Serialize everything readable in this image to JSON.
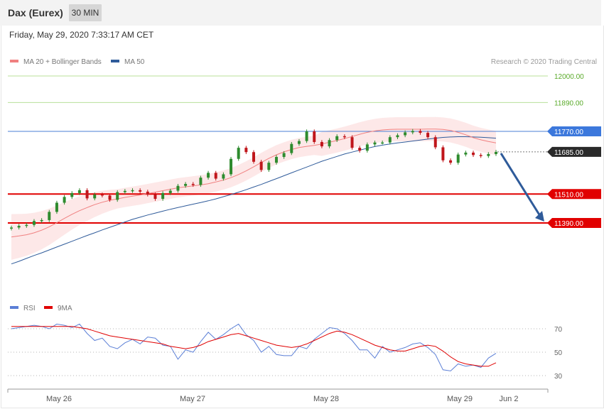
{
  "header": {
    "title": "Dax (Eurex)",
    "interval": "30 MIN",
    "datetime": "Friday, May 29, 2020 7:33:17 AM CET"
  },
  "legend": {
    "ma20": {
      "label": "MA 20 + Bollinger Bands",
      "color": "#f08080"
    },
    "ma50": {
      "label": "MA 50",
      "color": "#2f5b9a"
    },
    "credit": "Research © 2020 Trading Central"
  },
  "rsi_legend": {
    "rsi": {
      "label": "RSI",
      "color": "#5b7fd6"
    },
    "ma9": {
      "label": "9MA",
      "color": "#e00000"
    }
  },
  "x_labels": [
    "May 26",
    "May 27",
    "May 28",
    "May 29",
    "Jun 2"
  ],
  "colors": {
    "up": "#2e8b2e",
    "down": "#c0161b",
    "band": "#fde2e2",
    "target": "#5aab2a",
    "pivot": "#4a7fd6",
    "support": "#e10000",
    "current": "#2a2a2a",
    "arrow": "#2f5b9a"
  },
  "chart_data": [
    {
      "type": "line",
      "title": "Dax (Eurex)",
      "ylim": [
        11100,
        12100
      ],
      "price_levels": [
        {
          "value": "12000.00",
          "role": "target"
        },
        {
          "value": "11890.00",
          "role": "target"
        },
        {
          "value": "11770.00",
          "role": "pivot"
        },
        {
          "value": "11685.00",
          "role": "current"
        },
        {
          "value": "11510.00",
          "role": "support"
        },
        {
          "value": "11390.00",
          "role": "support"
        }
      ],
      "forecast": {
        "from": 11685,
        "to": 11390
      },
      "series": [
        {
          "name": "MA 20 + Bollinger Bands",
          "values": [
            11332,
            11336,
            11341,
            11349,
            11360,
            11374,
            11391,
            11409,
            11426,
            11441,
            11454,
            11466,
            11476,
            11484,
            11490,
            11496,
            11501,
            11506,
            11512,
            11518,
            11524,
            11530,
            11536,
            11540,
            11544,
            11548,
            11553,
            11560,
            11568,
            11578,
            11591,
            11606,
            11623,
            11641,
            11658,
            11673,
            11685,
            11695,
            11703,
            11708,
            11712,
            11718,
            11725,
            11732,
            11740,
            11749,
            11758,
            11766,
            11772,
            11776,
            11778,
            11779,
            11779,
            11779,
            11779,
            11780,
            11780,
            11778,
            11774,
            11766,
            11756,
            11744,
            11735,
            11728,
            11722
          ]
        },
        {
          "name": "MA 50",
          "values": [
            11220,
            11231,
            11243,
            11255,
            11266,
            11278,
            11290,
            11302,
            11314,
            11326,
            11338,
            11349,
            11361,
            11372,
            11383,
            11394,
            11405,
            11414,
            11423,
            11431,
            11439,
            11447,
            11454,
            11461,
            11468,
            11475,
            11482,
            11490,
            11499,
            11508,
            11518,
            11528,
            11539,
            11550,
            11562,
            11574,
            11586,
            11598,
            11610,
            11622,
            11634,
            11646,
            11656,
            11666,
            11676,
            11684,
            11692,
            11700,
            11707,
            11713,
            11718,
            11722,
            11726,
            11730,
            11734,
            11738,
            11742,
            11745,
            11747,
            11748,
            11748,
            11747,
            11746,
            11744,
            11742
          ]
        },
        {
          "name": "Price",
          "values": [
            11371,
            11378,
            11382,
            11398,
            11402,
            11436,
            11474,
            11498,
            11514,
            11526,
            11492,
            11508,
            11504,
            11486,
            11518,
            11523,
            11526,
            11520,
            11508,
            11490,
            11514,
            11524,
            11544,
            11552,
            11548,
            11578,
            11598,
            11574,
            11592,
            11656,
            11702,
            11684,
            11644,
            11610,
            11640,
            11664,
            11680,
            11718,
            11730,
            11770,
            11726,
            11708,
            11734,
            11750,
            11746,
            11702,
            11690,
            11716,
            11724,
            11724,
            11746,
            11754,
            11766,
            11772,
            11764,
            11746,
            11704,
            11650,
            11640,
            11674,
            11682,
            11672,
            11668,
            11676,
            11685
          ]
        }
      ]
    },
    {
      "type": "line",
      "ylim": [
        20,
        80
      ],
      "yticks": [
        70,
        50,
        30
      ],
      "series": [
        {
          "name": "RSI",
          "values": [
            70,
            71,
            72,
            73,
            72,
            70,
            74,
            73,
            71,
            74,
            66,
            60,
            62,
            55,
            53,
            58,
            61,
            57,
            63,
            62,
            56,
            55,
            44,
            52,
            50,
            59,
            67,
            61,
            65,
            70,
            74,
            65,
            60,
            50,
            55,
            48,
            47,
            47,
            55,
            53,
            61,
            66,
            71,
            70,
            66,
            60,
            52,
            52,
            45,
            55,
            50,
            52,
            54,
            57,
            58,
            54,
            48,
            35,
            34,
            40,
            38,
            39,
            37,
            45,
            49
          ]
        },
        {
          "name": "9MA",
          "values": [
            72,
            72,
            72,
            72,
            72,
            72,
            72,
            72,
            72,
            71,
            70,
            68,
            66,
            64,
            63,
            62,
            61,
            60,
            59,
            58,
            57,
            55,
            54,
            53,
            54,
            56,
            59,
            61,
            63,
            65,
            66,
            64,
            62,
            60,
            58,
            56,
            55,
            54,
            55,
            57,
            60,
            63,
            66,
            68,
            67,
            65,
            62,
            59,
            56,
            54,
            52,
            51,
            51,
            53,
            55,
            56,
            55,
            51,
            46,
            42,
            40,
            39,
            38,
            38,
            41
          ]
        }
      ]
    }
  ]
}
